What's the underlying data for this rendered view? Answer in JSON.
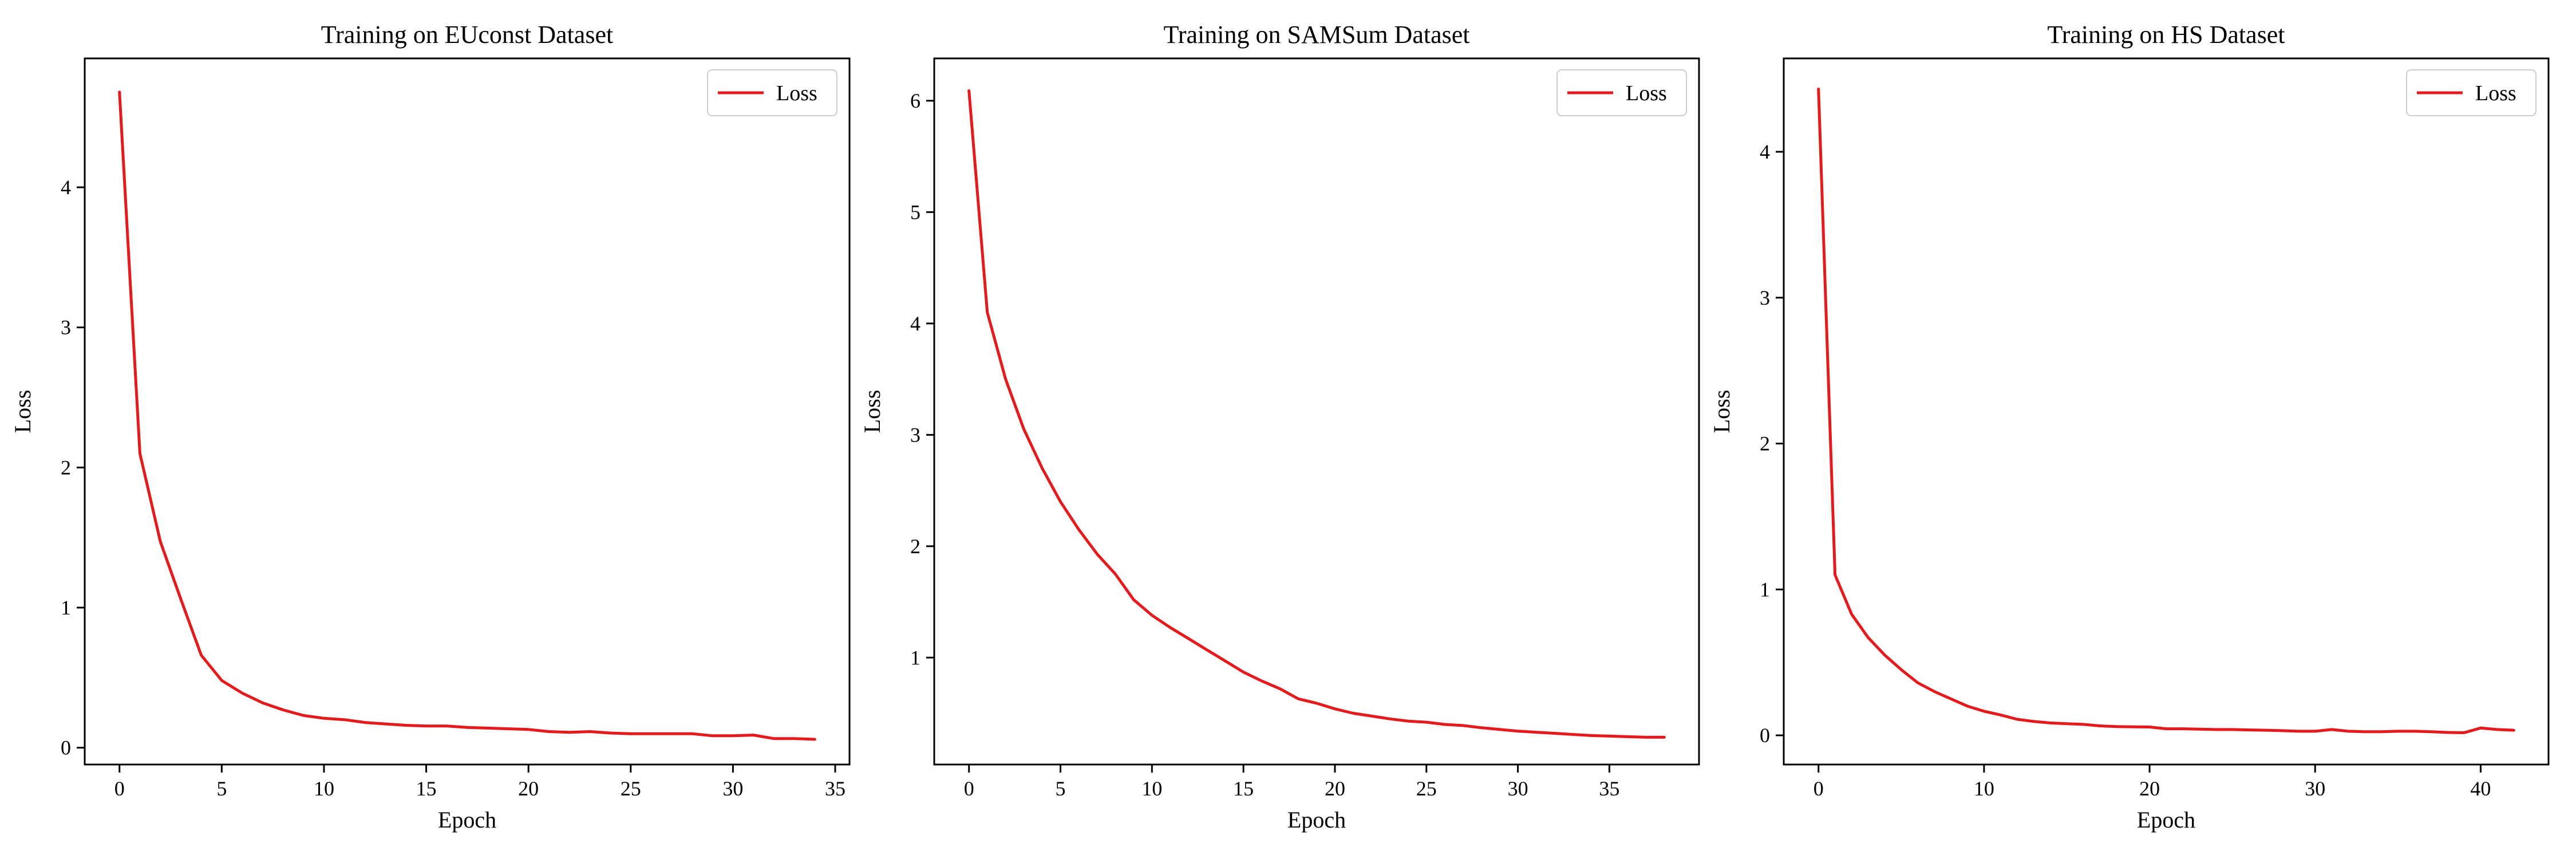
{
  "chart_data": [
    {
      "type": "line",
      "title": "Training on EUconst Dataset",
      "xlabel": "Epoch",
      "ylabel": "Loss",
      "xlim": [
        -1.7,
        35.7
      ],
      "ylim": [
        -0.12,
        4.92
      ],
      "xticks": [
        0,
        5,
        10,
        15,
        20,
        25,
        30,
        35
      ],
      "yticks": [
        0,
        1,
        2,
        3,
        4
      ],
      "legend": {
        "position": "top-right",
        "entries": [
          "Loss"
        ]
      },
      "grid": false,
      "series": [
        {
          "name": "Loss",
          "color": "#e41a1c",
          "x": [
            0,
            1,
            2,
            3,
            4,
            5,
            6,
            7,
            8,
            9,
            10,
            11,
            12,
            13,
            14,
            15,
            16,
            17,
            18,
            19,
            20,
            21,
            22,
            23,
            24,
            25,
            26,
            27,
            28,
            29,
            30,
            31,
            32,
            33,
            34
          ],
          "y": [
            4.68,
            2.1,
            1.47,
            1.06,
            0.66,
            0.48,
            0.39,
            0.32,
            0.27,
            0.23,
            0.21,
            0.2,
            0.18,
            0.17,
            0.16,
            0.155,
            0.155,
            0.145,
            0.14,
            0.135,
            0.13,
            0.115,
            0.11,
            0.115,
            0.105,
            0.1,
            0.1,
            0.1,
            0.1,
            0.085,
            0.085,
            0.09,
            0.065,
            0.065,
            0.06
          ]
        }
      ]
    },
    {
      "type": "line",
      "title": "Training on SAMSum Dataset",
      "xlabel": "Epoch",
      "ylabel": "Loss",
      "xlim": [
        -1.9,
        39.9
      ],
      "ylim": [
        0.04,
        6.38
      ],
      "xticks": [
        0,
        5,
        10,
        15,
        20,
        25,
        30,
        35
      ],
      "yticks": [
        1,
        2,
        3,
        4,
        5,
        6
      ],
      "legend": {
        "position": "top-right",
        "entries": [
          "Loss"
        ]
      },
      "grid": false,
      "series": [
        {
          "name": "Loss",
          "color": "#e41a1c",
          "x": [
            0,
            1,
            2,
            3,
            4,
            5,
            6,
            7,
            8,
            9,
            10,
            11,
            12,
            13,
            14,
            15,
            16,
            17,
            18,
            19,
            20,
            21,
            22,
            23,
            24,
            25,
            26,
            27,
            28,
            29,
            30,
            31,
            32,
            33,
            34,
            35,
            36,
            37,
            38
          ],
          "y": [
            6.09,
            4.1,
            3.5,
            3.05,
            2.7,
            2.4,
            2.15,
            1.93,
            1.75,
            1.52,
            1.38,
            1.27,
            1.17,
            1.07,
            0.97,
            0.87,
            0.79,
            0.72,
            0.63,
            0.59,
            0.54,
            0.5,
            0.475,
            0.45,
            0.43,
            0.42,
            0.4,
            0.39,
            0.37,
            0.355,
            0.34,
            0.33,
            0.32,
            0.31,
            0.3,
            0.295,
            0.29,
            0.285,
            0.285
          ]
        }
      ]
    },
    {
      "type": "line",
      "title": "Training on HS Dataset",
      "xlabel": "Epoch",
      "ylabel": "Loss",
      "xlim": [
        -2.1,
        44.1
      ],
      "ylim": [
        -0.2,
        4.64
      ],
      "xticks": [
        0,
        10,
        20,
        30,
        40
      ],
      "yticks": [
        0,
        1,
        2,
        3,
        4
      ],
      "legend": {
        "position": "top-right",
        "entries": [
          "Loss"
        ]
      },
      "grid": false,
      "series": [
        {
          "name": "Loss",
          "color": "#e41a1c",
          "x": [
            0,
            1,
            2,
            3,
            4,
            5,
            6,
            7,
            8,
            9,
            10,
            11,
            12,
            13,
            14,
            15,
            16,
            17,
            18,
            19,
            20,
            21,
            22,
            23,
            24,
            25,
            26,
            27,
            28,
            29,
            30,
            31,
            32,
            33,
            34,
            35,
            36,
            37,
            38,
            39,
            40,
            41,
            42
          ],
          "y": [
            4.43,
            1.1,
            0.83,
            0.67,
            0.55,
            0.45,
            0.36,
            0.3,
            0.25,
            0.2,
            0.165,
            0.14,
            0.11,
            0.095,
            0.085,
            0.08,
            0.075,
            0.065,
            0.06,
            0.058,
            0.057,
            0.045,
            0.045,
            0.042,
            0.04,
            0.04,
            0.037,
            0.035,
            0.032,
            0.028,
            0.028,
            0.04,
            0.028,
            0.025,
            0.025,
            0.028,
            0.028,
            0.025,
            0.02,
            0.018,
            0.05,
            0.04,
            0.035
          ]
        }
      ]
    }
  ]
}
